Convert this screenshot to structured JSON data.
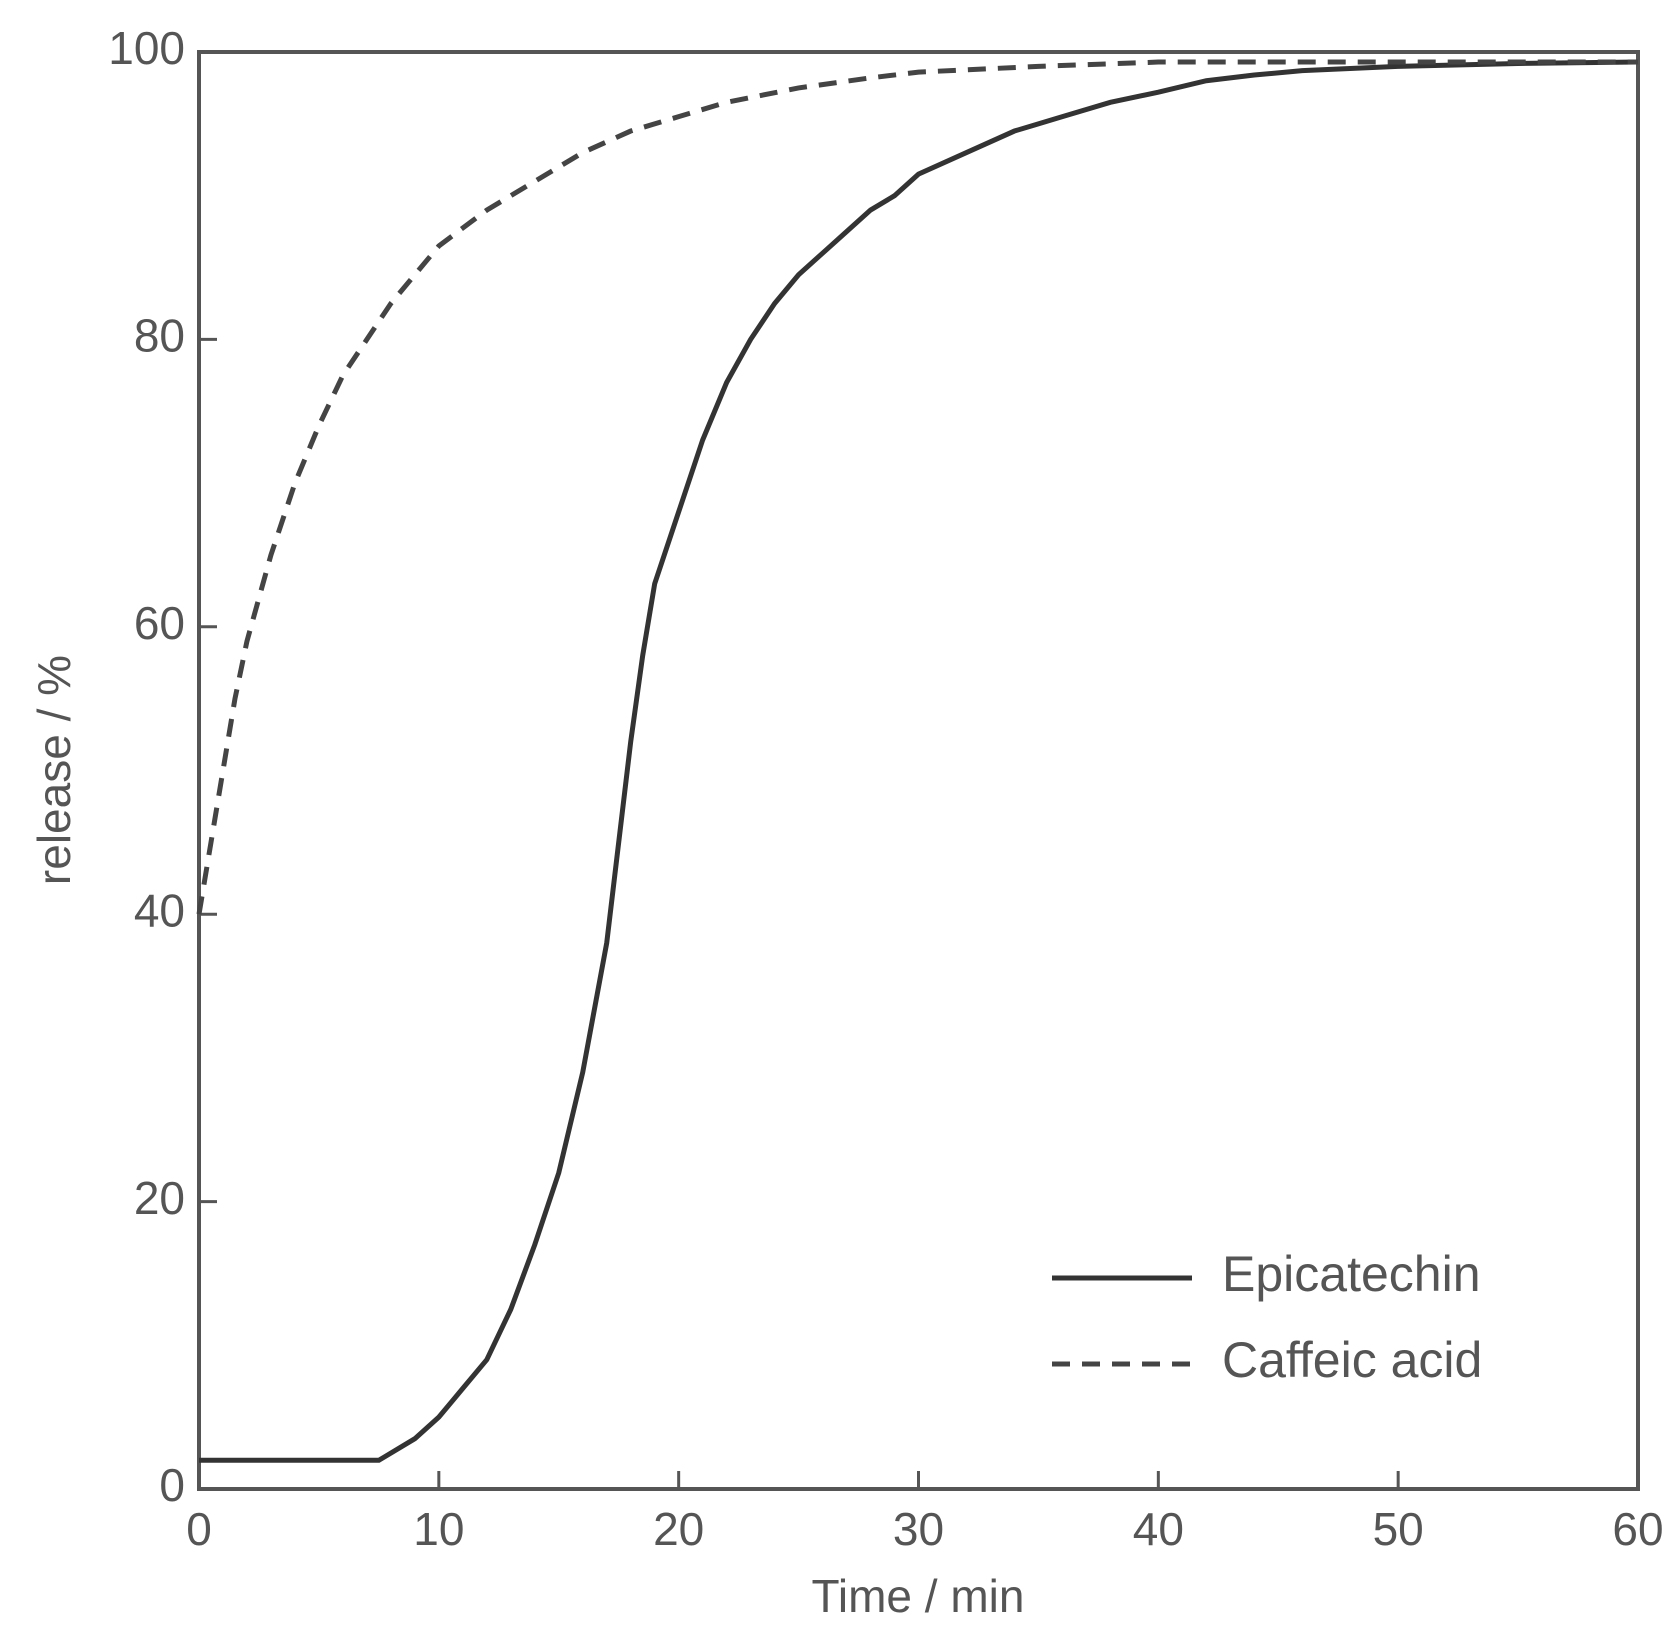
{
  "chart_data": {
    "type": "line",
    "xlabel": "Time / min",
    "ylabel": "release / %",
    "xlim": [
      0,
      60
    ],
    "ylim": [
      0,
      100
    ],
    "xticks": [
      0,
      10,
      20,
      30,
      40,
      50,
      60
    ],
    "yticks": [
      0,
      20,
      40,
      60,
      80,
      100
    ],
    "legend": "lower right",
    "series": [
      {
        "name": "Epicatechin",
        "color": "#333333",
        "dash": "solid",
        "x": [
          0,
          7.5,
          9,
          10,
          11,
          12,
          13,
          14,
          15,
          16,
          17,
          17.5,
          18,
          18.5,
          19,
          20,
          21,
          22,
          23,
          24,
          25,
          26,
          27,
          28,
          29,
          30,
          32,
          34,
          36,
          38,
          40,
          42,
          44,
          46,
          50,
          55,
          60
        ],
        "values": [
          2,
          2,
          3.5,
          5,
          7,
          9,
          12.5,
          17,
          22,
          29,
          38,
          45,
          52,
          58,
          63,
          68,
          73,
          77,
          80,
          82.5,
          84.5,
          86,
          87.5,
          89,
          90,
          91.5,
          93,
          94.5,
          95.5,
          96.5,
          97.2,
          98,
          98.4,
          98.7,
          99,
          99.2,
          99.3
        ]
      },
      {
        "name": "Caffeic acid",
        "color": "#444444",
        "dash": "dashed",
        "x": [
          0,
          0.5,
          1,
          1.5,
          2,
          3,
          4,
          5,
          6,
          7,
          8,
          9,
          10,
          12,
          14,
          16,
          18,
          20,
          22,
          25,
          28,
          30,
          35,
          40,
          45,
          50,
          55,
          60
        ],
        "values": [
          40,
          45,
          50,
          55,
          59,
          65,
          70,
          74,
          77.5,
          80,
          82.5,
          84.5,
          86.5,
          89,
          91,
          93,
          94.5,
          95.5,
          96.5,
          97.5,
          98.2,
          98.6,
          99,
          99.3,
          99.3,
          99.3,
          99.3,
          99.3
        ]
      }
    ]
  }
}
